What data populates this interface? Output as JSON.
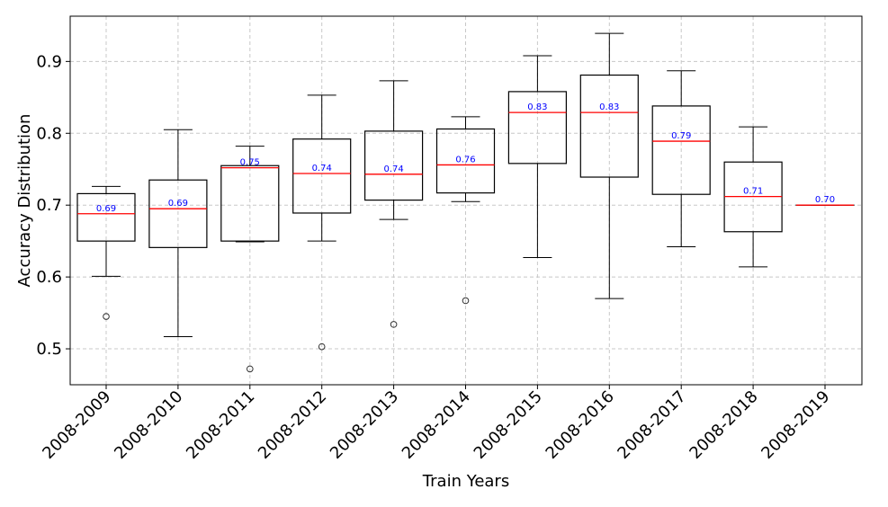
{
  "chart_data": {
    "type": "box",
    "xlabel": "Train Years",
    "ylabel": "Accuracy Distribution",
    "ylim": [
      0.45,
      0.963
    ],
    "yticks": [
      "0.5",
      "0.6",
      "0.7",
      "0.8",
      "0.9"
    ],
    "grid": true,
    "colors": {
      "median": "#ff0000",
      "median_label": "#0000ff",
      "box": "#000000",
      "grid": "#c8c8c8"
    },
    "categories": [
      "2008-2009",
      "2008-2010",
      "2008-2011",
      "2008-2012",
      "2008-2013",
      "2008-2014",
      "2008-2015",
      "2008-2016",
      "2008-2017",
      "2008-2018",
      "2008-2019"
    ],
    "boxes": [
      {
        "whisker_low": 0.601,
        "q1": 0.65,
        "median": 0.688,
        "q3": 0.716,
        "whisker_high": 0.726,
        "outliers": [
          0.545
        ],
        "median_label": "0.69"
      },
      {
        "whisker_low": 0.517,
        "q1": 0.641,
        "median": 0.695,
        "q3": 0.735,
        "whisker_high": 0.805,
        "outliers": [],
        "median_label": "0.69"
      },
      {
        "whisker_low": 0.649,
        "q1": 0.65,
        "median": 0.752,
        "q3": 0.755,
        "whisker_high": 0.782,
        "outliers": [
          0.472
        ],
        "median_label": "0.75"
      },
      {
        "whisker_low": 0.65,
        "q1": 0.689,
        "median": 0.744,
        "q3": 0.792,
        "whisker_high": 0.853,
        "outliers": [
          0.503
        ],
        "median_label": "0.74"
      },
      {
        "whisker_low": 0.68,
        "q1": 0.707,
        "median": 0.743,
        "q3": 0.803,
        "whisker_high": 0.873,
        "outliers": [
          0.534
        ],
        "median_label": "0.74"
      },
      {
        "whisker_low": 0.705,
        "q1": 0.717,
        "median": 0.756,
        "q3": 0.806,
        "whisker_high": 0.823,
        "outliers": [
          0.567
        ],
        "median_label": "0.76"
      },
      {
        "whisker_low": 0.627,
        "q1": 0.758,
        "median": 0.829,
        "q3": 0.858,
        "whisker_high": 0.908,
        "outliers": [],
        "median_label": "0.83"
      },
      {
        "whisker_low": 0.57,
        "q1": 0.739,
        "median": 0.829,
        "q3": 0.881,
        "whisker_high": 0.939,
        "outliers": [],
        "median_label": "0.83"
      },
      {
        "whisker_low": 0.642,
        "q1": 0.715,
        "median": 0.789,
        "q3": 0.838,
        "whisker_high": 0.887,
        "outliers": [],
        "median_label": "0.79"
      },
      {
        "whisker_low": 0.614,
        "q1": 0.663,
        "median": 0.712,
        "q3": 0.76,
        "whisker_high": 0.809,
        "outliers": [],
        "median_label": "0.71"
      },
      {
        "whisker_low": 0.7,
        "q1": 0.7,
        "median": 0.7,
        "q3": 0.7,
        "whisker_high": 0.7,
        "outliers": [],
        "median_label": "0.70"
      }
    ]
  }
}
